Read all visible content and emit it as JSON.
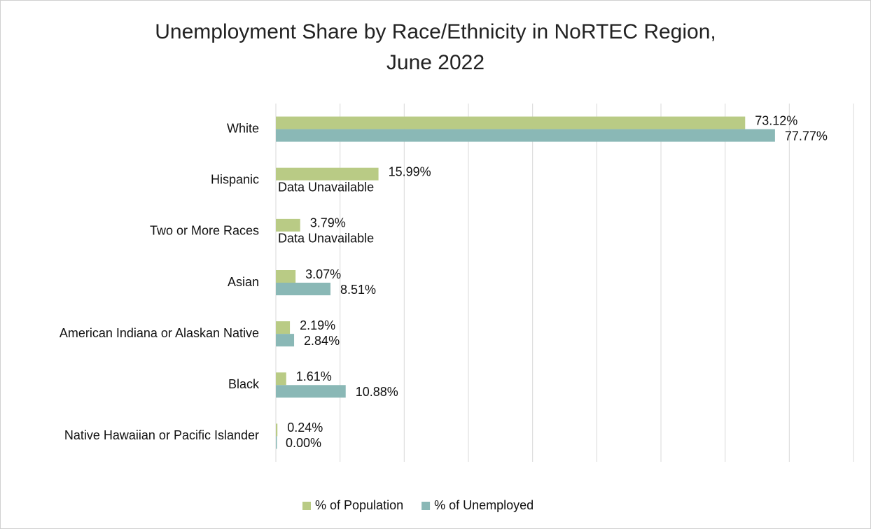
{
  "chart_data": {
    "type": "hbar",
    "title": "Unemployment Share by Race/Ethnicity in NoRTEC Region, June 2022",
    "categories": [
      "White",
      "Hispanic",
      "Two or More Races",
      "Asian",
      "American Indiana or Alaskan Native",
      "Black",
      "Native Hawaiian or Pacific Islander"
    ],
    "series": [
      {
        "name": "% of Population",
        "color": "#b9cb85",
        "values": [
          73.12,
          15.99,
          3.79,
          3.07,
          2.19,
          1.61,
          0.24
        ],
        "value_labels": [
          "73.12%",
          "15.99%",
          "3.79%",
          "3.07%",
          "2.19%",
          "1.61%",
          "0.24%"
        ]
      },
      {
        "name": "% of Unemployed",
        "color": "#8ab8b6",
        "values": [
          77.77,
          null,
          null,
          8.51,
          2.84,
          10.88,
          0.0
        ],
        "value_labels": [
          "77.77%",
          "Data Unavailable",
          "Data Unavailable",
          "8.51%",
          "2.84%",
          "10.88%",
          "0.00%"
        ]
      }
    ],
    "xlim": [
      0,
      90
    ],
    "xticks": [
      0,
      10,
      20,
      30,
      40,
      50,
      60,
      70,
      80,
      90
    ],
    "grid": true,
    "legend": "bottom"
  }
}
